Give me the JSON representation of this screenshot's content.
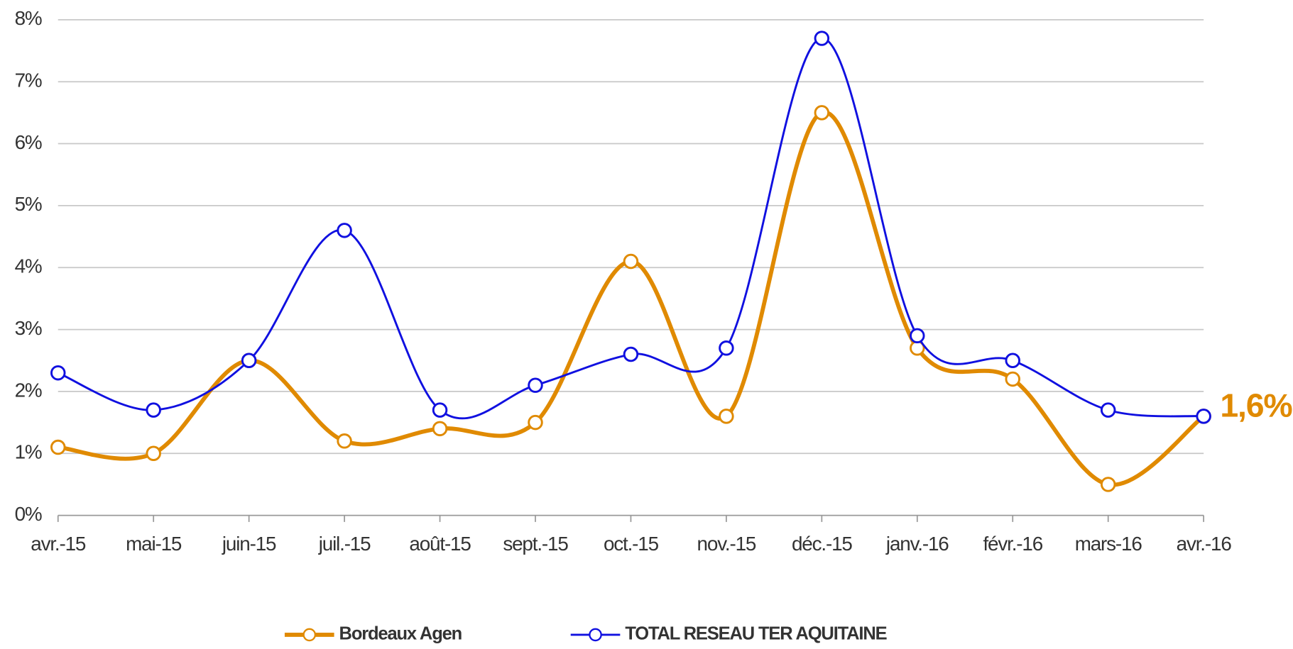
{
  "chart_data": {
    "type": "line",
    "categories": [
      "avr.-15",
      "mai-15",
      "juin-15",
      "juil.-15",
      "août-15",
      "sept.-15",
      "oct.-15",
      "nov.-15",
      "déc.-15",
      "janv.-16",
      "févr.-16",
      "mars-16",
      "avr.-16"
    ],
    "series": [
      {
        "name": "Bordeaux Agen",
        "color": "#e08a00",
        "values": [
          1.1,
          1.0,
          2.5,
          1.2,
          1.4,
          1.5,
          4.1,
          1.6,
          6.5,
          2.7,
          2.2,
          0.5,
          1.6
        ],
        "value_labels": [
          null,
          null,
          null,
          null,
          null,
          null,
          null,
          null,
          null,
          null,
          null,
          null,
          "1,6%"
        ]
      },
      {
        "name": "TOTAL RESEAU TER AQUITAINE",
        "color": "#1010e0",
        "values": [
          2.3,
          1.7,
          2.5,
          4.6,
          1.7,
          2.1,
          2.6,
          2.7,
          7.7,
          2.9,
          2.5,
          1.7,
          1.6
        ]
      }
    ],
    "ylim": [
      0,
      8
    ],
    "yticks": [
      {
        "value": 0,
        "label": "0%"
      },
      {
        "value": 1,
        "label": "1%"
      },
      {
        "value": 2,
        "label": "2%"
      },
      {
        "value": 3,
        "label": "3%"
      },
      {
        "value": 4,
        "label": "4%"
      },
      {
        "value": 5,
        "label": "5%"
      },
      {
        "value": 6,
        "label": "6%"
      },
      {
        "value": 7,
        "label": "7%"
      },
      {
        "value": 8,
        "label": "8%"
      }
    ],
    "grid": true,
    "smooth": true,
    "legend": "bottom"
  }
}
